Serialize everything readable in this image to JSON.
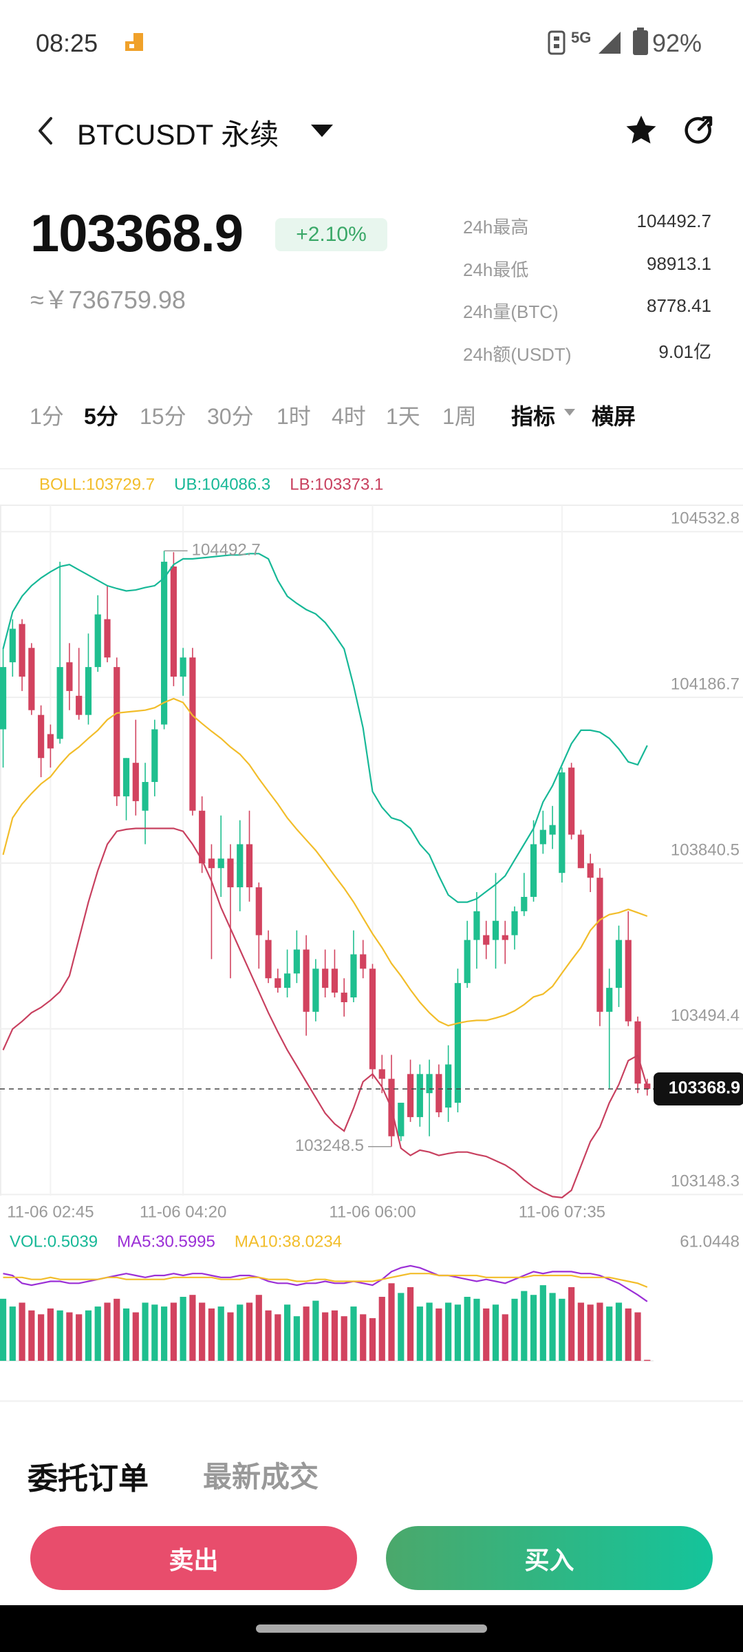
{
  "status_bar": {
    "time": "08:25",
    "network": "5G",
    "battery": "92%"
  },
  "header": {
    "symbol": "BTCUSDT",
    "contract": "永续"
  },
  "ticker": {
    "price": "103368.9",
    "change": "+2.10%",
    "cny": "≈￥736759.98",
    "stats": [
      {
        "label": "24h最高",
        "value": "104492.7"
      },
      {
        "label": "24h最低",
        "value": "98913.1"
      },
      {
        "label": "24h量(BTC)",
        "value": "8778.41"
      },
      {
        "label": "24h额(USDT)",
        "value": "9.01亿"
      }
    ]
  },
  "intervals": [
    "1分",
    "5分",
    "15分",
    "30分",
    "1时",
    "4时",
    "1天",
    "1周"
  ],
  "active_interval": "5分",
  "toolbar": [
    "指标",
    "横屏"
  ],
  "chart_data": [
    {
      "type": "candlestick",
      "categories": [
        null,
        null,
        null,
        null,
        null,
        "11-06 02:45",
        null,
        null,
        null,
        null,
        null,
        null,
        null,
        null,
        null,
        null,
        null,
        null,
        null,
        "11-06 04:20",
        null,
        null,
        null,
        null,
        null,
        null,
        null,
        null,
        null,
        null,
        null,
        null,
        null,
        null,
        null,
        null,
        null,
        null,
        null,
        "11-06 06:00",
        null,
        null,
        null,
        null,
        null,
        null,
        null,
        null,
        null,
        null,
        null,
        null,
        null,
        null,
        null,
        null,
        null,
        null,
        null,
        "11-06 07:35",
        null,
        null,
        null,
        null,
        null,
        null,
        null,
        null,
        null
      ],
      "open": [
        104120,
        104260,
        104340,
        104290,
        104150,
        104110,
        104100,
        104260,
        104190,
        104150,
        104250,
        104350,
        104250,
        103980,
        104050,
        103950,
        104010,
        104130,
        104460,
        104230,
        104270,
        103950,
        103850,
        103830,
        103850,
        103790,
        103880,
        103790,
        103680,
        103600,
        103580,
        103610,
        103660,
        103530,
        103620,
        103620,
        103570,
        103560,
        103650,
        103620,
        103410,
        103390,
        103270,
        103400,
        103310,
        103360,
        103400,
        103330,
        103340,
        103590,
        103680,
        103690,
        103680,
        103690,
        103690,
        103740,
        103770,
        103880,
        103900,
        103820,
        104040,
        103900,
        103840,
        103810,
        103530,
        103580,
        103680,
        103510,
        103380
      ],
      "high": [
        104290,
        104350,
        104350,
        104300,
        104170,
        104130,
        104470,
        104300,
        104290,
        104320,
        104400,
        104420,
        104270,
        104060,
        104140,
        104050,
        104140,
        104492.7,
        104490,
        104290,
        104290,
        103980,
        103880,
        103940,
        103880,
        103930,
        103950,
        103800,
        103700,
        103620,
        103660,
        103700,
        103690,
        103640,
        103660,
        103660,
        103600,
        103700,
        103680,
        103630,
        103440,
        103440,
        103340,
        103430,
        103420,
        103430,
        103420,
        103460,
        103620,
        103720,
        103780,
        103720,
        103820,
        103720,
        103750,
        103820,
        103930,
        103950,
        103960,
        104040,
        104050,
        103910,
        103860,
        103830,
        103620,
        103710,
        103740,
        103520,
        103390
      ],
      "low": [
        104040,
        104230,
        104200,
        104150,
        104020,
        104040,
        104090,
        104160,
        104140,
        104130,
        104240,
        104260,
        103960,
        103930,
        103940,
        103880,
        103980,
        104120,
        104210,
        104190,
        103940,
        103820,
        103640,
        103770,
        103600,
        103740,
        103760,
        103620,
        103590,
        103570,
        103560,
        103590,
        103480,
        103510,
        103560,
        103560,
        103520,
        103550,
        103600,
        103390,
        103360,
        103248.5,
        103260,
        103300,
        103290,
        103270,
        103310,
        103300,
        103320,
        103580,
        103620,
        103640,
        103620,
        103630,
        103660,
        103730,
        103760,
        103860,
        103870,
        103800,
        103890,
        103830,
        103780,
        103500,
        103370,
        103540,
        103500,
        103360,
        103355
      ],
      "close": [
        104250,
        104330,
        104230,
        104160,
        104060,
        104080,
        104250,
        104200,
        104150,
        104250,
        104360,
        104270,
        103980,
        104060,
        103970,
        104010,
        104120,
        104470,
        104230,
        104270,
        103950,
        103840,
        103830,
        103850,
        103790,
        103880,
        103790,
        103690,
        103600,
        103580,
        103610,
        103660,
        103530,
        103620,
        103580,
        103570,
        103550,
        103650,
        103620,
        103410,
        103390,
        103270,
        103340,
        103310,
        103400,
        103400,
        103320,
        103420,
        103590,
        103680,
        103740,
        103670,
        103720,
        103680,
        103740,
        103770,
        103880,
        103910,
        103920,
        104030,
        103900,
        103830,
        103810,
        103530,
        103580,
        103680,
        103510,
        103380,
        103368.9
      ],
      "up_color": "#1fbf8f",
      "down_color": "#d2435f",
      "series": [
        {
          "name": "BOLL:103729.7",
          "color": "#f2bd2a",
          "values": [
            103858,
            103935,
            103964,
            103986,
            104006,
            104021,
            104046,
            104068,
            104083,
            104101,
            104118,
            104140,
            104154,
            104156,
            104158,
            104160,
            104165,
            104176,
            104184,
            104176,
            104149,
            104132,
            104116,
            104101,
            104083,
            104068,
            104046,
            104017,
            103990,
            103964,
            103935,
            103911,
            103889,
            103867,
            103841,
            103814,
            103788,
            103759,
            103726,
            103693,
            103664,
            103631,
            103605,
            103576,
            103550,
            103528,
            103510,
            103501,
            103506,
            103510,
            103512,
            103512,
            103517,
            103523,
            103532,
            103545,
            103561,
            103567,
            103583,
            103611,
            103638,
            103664,
            103700,
            103722,
            103733,
            103737,
            103744,
            103737,
            103729.7
          ]
        },
        {
          "name": "UB:104086.3",
          "color": "#17b897",
          "values": [
            104288,
            104365,
            104398,
            104420,
            104436,
            104449,
            104460,
            104464,
            104453,
            104442,
            104431,
            104420,
            104414,
            104409,
            104411,
            104416,
            104420,
            104436,
            104464,
            104476,
            104476,
            104478,
            104480,
            104482,
            104484,
            104484,
            104487,
            104487,
            104476,
            104431,
            104398,
            104383,
            104370,
            104361,
            104343,
            104317,
            104288,
            104211,
            104123,
            103990,
            103957,
            103935,
            103929,
            103913,
            103880,
            103858,
            103814,
            103774,
            103759,
            103759,
            103766,
            103781,
            103796,
            103814,
            103847,
            103880,
            103913,
            103968,
            104002,
            104046,
            104090,
            104118,
            104118,
            104114,
            104101,
            104079,
            104052,
            104046,
            104086.3
          ]
        },
        {
          "name": "LB:103373.1",
          "color": "#c8405f",
          "values": [
            103450,
            103494,
            103510,
            103528,
            103539,
            103554,
            103572,
            103605,
            103682,
            103759,
            103825,
            103880,
            103907,
            103911,
            103913,
            103913,
            103913,
            103913,
            103913,
            103907,
            103880,
            103847,
            103803,
            103748,
            103704,
            103660,
            103616,
            103572,
            103528,
            103488,
            103450,
            103417,
            103384,
            103351,
            103318,
            103296,
            103281,
            103329,
            103384,
            103400,
            103373,
            103329,
            103245,
            103230,
            103241,
            103237,
            103230,
            103234,
            103237,
            103237,
            103232,
            103228,
            103219,
            103210,
            103197,
            103179,
            103164,
            103153,
            103144,
            103142,
            103157,
            103208,
            103259,
            103289,
            103340,
            103378,
            103428,
            103439,
            103373.1
          ]
        }
      ],
      "ylim": [
        103146,
        104588
      ],
      "yticks": [
        104532.8,
        104186.7,
        103840.5,
        103494.4,
        103148.3
      ],
      "grid": true
    },
    {
      "type": "bar",
      "name": "VOL:0.5039",
      "color": "#17b897",
      "values": [
        32,
        28,
        30,
        26,
        24,
        27,
        26,
        25,
        24,
        26,
        28,
        30,
        32,
        27,
        25,
        30,
        29,
        28,
        30,
        33,
        34,
        30,
        27,
        28,
        25,
        29,
        30,
        34,
        26,
        24,
        29,
        23,
        28,
        31,
        25,
        26,
        23,
        28,
        24,
        22,
        33,
        40,
        35,
        38,
        28,
        30,
        27,
        30,
        29,
        33,
        32,
        27,
        29,
        24,
        32,
        36,
        34,
        39,
        35,
        32,
        38,
        30,
        29,
        30,
        28,
        30,
        27,
        25,
        0.5039
      ],
      "series": [
        {
          "name": "MA5:30.5995",
          "color": "#9b2fd6",
          "values": [
            45,
            44,
            40,
            39,
            40,
            41,
            41,
            40,
            40,
            41,
            42,
            43,
            44,
            45,
            44,
            43,
            44,
            44,
            45,
            44,
            45,
            45,
            44,
            43,
            43,
            44,
            44,
            43,
            41,
            40,
            40,
            39,
            40,
            40,
            41,
            40,
            40,
            41,
            40,
            39,
            42,
            46,
            48,
            49,
            48,
            46,
            44,
            44,
            43,
            42,
            41,
            42,
            41,
            40,
            42,
            44,
            46,
            45,
            46,
            46,
            46,
            45,
            45,
            44,
            42,
            40,
            37,
            34,
            30.5995
          ]
        },
        {
          "name": "MA10:38.0234",
          "color": "#f2bd2a",
          "values": [
            43,
            43,
            43,
            42,
            42,
            43,
            42,
            42,
            42,
            42,
            42,
            43,
            43,
            42,
            42,
            42,
            42,
            42,
            43,
            43,
            43,
            43,
            43,
            42,
            42,
            42,
            43,
            43,
            42,
            42,
            42,
            41,
            41,
            42,
            42,
            41,
            41,
            41,
            41,
            41,
            42,
            43,
            44,
            45,
            45,
            45,
            44,
            44,
            44,
            44,
            44,
            43,
            43,
            43,
            43,
            43,
            44,
            44,
            44,
            44,
            44,
            43,
            43,
            43,
            43,
            42,
            41,
            40,
            38.0234
          ]
        }
      ],
      "ylim": [
        0,
        61.0448
      ],
      "yticks": [
        61.0448
      ]
    }
  ],
  "orders": {
    "tabs": [
      "委托订单",
      "最新成交"
    ],
    "active": "委托订单"
  },
  "actions": {
    "sell": "卖出",
    "buy": "买入"
  }
}
